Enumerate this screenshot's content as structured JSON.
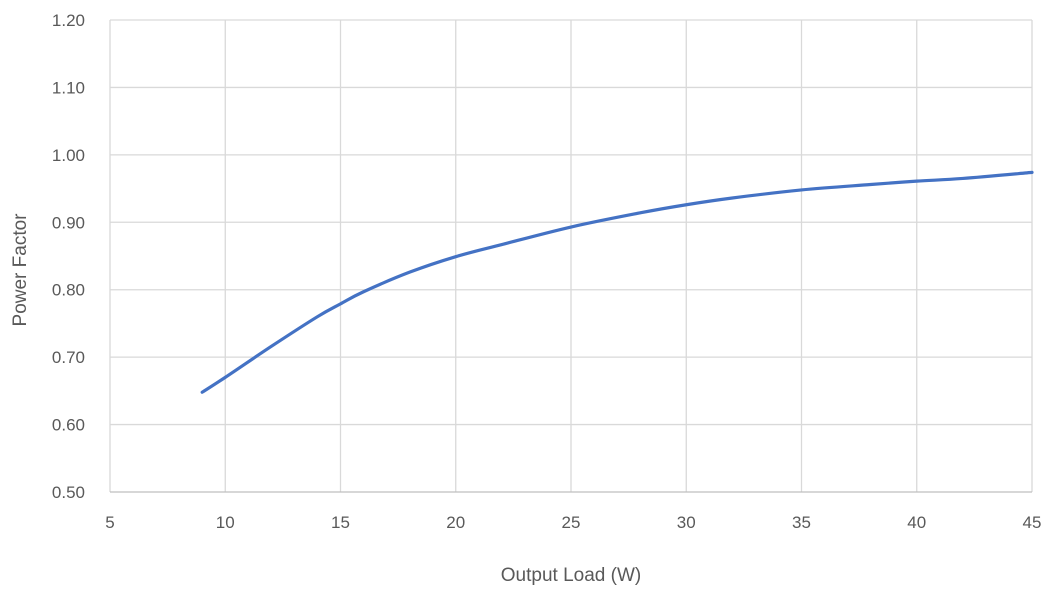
{
  "chart_data": {
    "type": "line",
    "title": "",
    "xlabel": "Output Load (W)",
    "ylabel": "Power Factor",
    "xlim": [
      5,
      45
    ],
    "ylim": [
      0.5,
      1.2
    ],
    "x_ticks": [
      5,
      10,
      15,
      20,
      25,
      30,
      35,
      40,
      45
    ],
    "y_ticks": [
      0.5,
      0.6,
      0.7,
      0.8,
      0.9,
      1.0,
      1.1,
      1.2
    ],
    "x_tick_labels": [
      "5",
      "10",
      "15",
      "20",
      "25",
      "30",
      "35",
      "40",
      "45"
    ],
    "y_tick_labels": [
      "0.50",
      "0.60",
      "0.70",
      "0.80",
      "0.90",
      "1.00",
      "1.10",
      "1.20"
    ],
    "grid": true,
    "legend": "none",
    "series": [
      {
        "color": "#4472c4",
        "x": [
          9,
          10,
          12,
          14,
          15,
          16,
          18,
          20,
          22,
          25,
          28,
          30,
          32,
          35,
          38,
          40,
          42,
          45
        ],
        "y": [
          0.648,
          0.67,
          0.716,
          0.76,
          0.779,
          0.797,
          0.826,
          0.849,
          0.867,
          0.893,
          0.914,
          0.926,
          0.936,
          0.948,
          0.956,
          0.961,
          0.965,
          0.974
        ]
      }
    ]
  }
}
